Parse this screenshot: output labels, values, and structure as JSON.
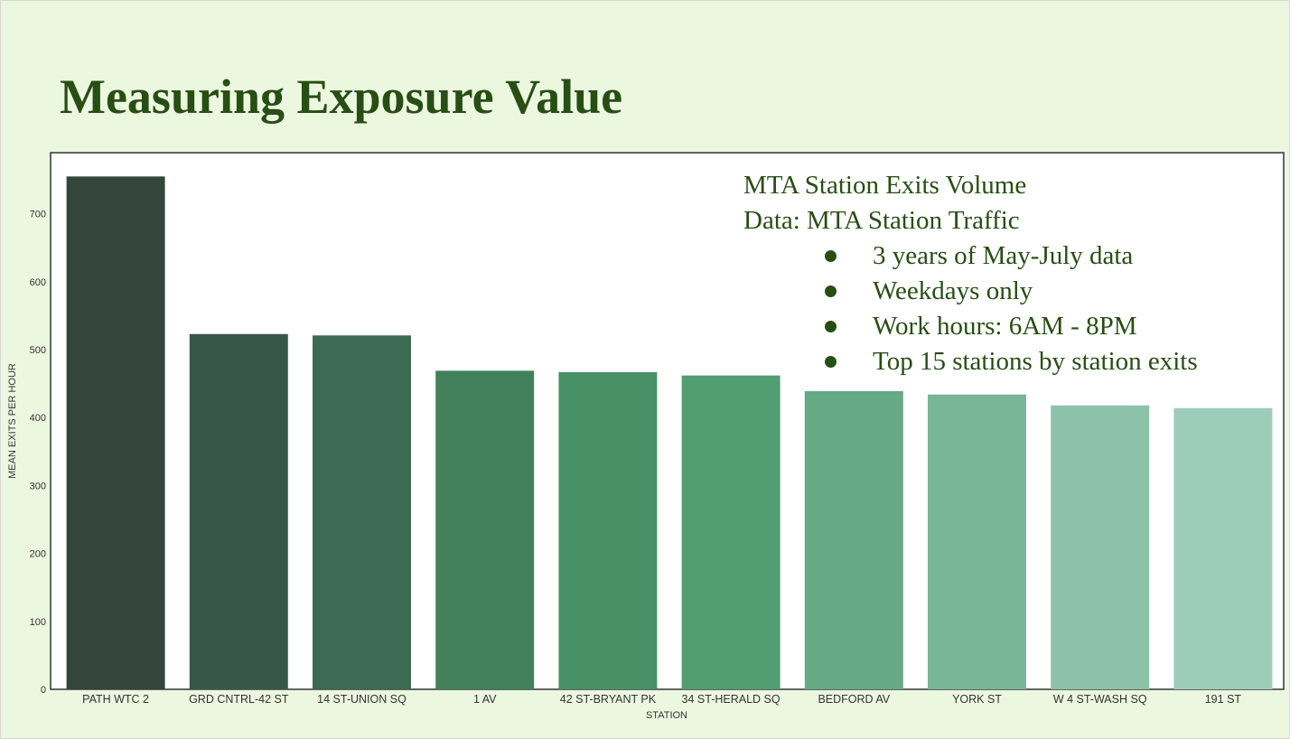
{
  "slide": {
    "title": "Measuring Exposure Value"
  },
  "note": {
    "line1": "MTA Station Exits Volume",
    "line2": "Data: MTA Station Traffic",
    "bullets": [
      "3 years of May-July data",
      "Weekdays only",
      "Work hours: 6AM - 8PM",
      "Top 15 stations by station exits"
    ]
  },
  "chart_data": {
    "type": "bar",
    "title": "",
    "xlabel": "STATION",
    "ylabel": "MEAN EXITS PER HOUR",
    "ylim": [
      0,
      790
    ],
    "yticks": [
      0,
      100,
      200,
      300,
      400,
      500,
      600,
      700
    ],
    "categories": [
      "PATH WTC 2",
      "GRD CNTRL-42 ST",
      "14 ST-UNION SQ",
      "1 AV",
      "42 ST-BRYANT PK",
      "34 ST-HERALD SQ",
      "BEDFORD AV",
      "YORK ST",
      "W 4 ST-WASH SQ",
      "191 ST"
    ],
    "values": [
      755,
      523,
      521,
      469,
      467,
      462,
      439,
      434,
      418,
      414
    ],
    "colors": [
      "#34453b",
      "#375848",
      "#3c6a52",
      "#42805c",
      "#489166",
      "#529d71",
      "#65aa84",
      "#79b698",
      "#8cc2a9",
      "#9dccbb"
    ],
    "grid": false,
    "legend": "none"
  }
}
